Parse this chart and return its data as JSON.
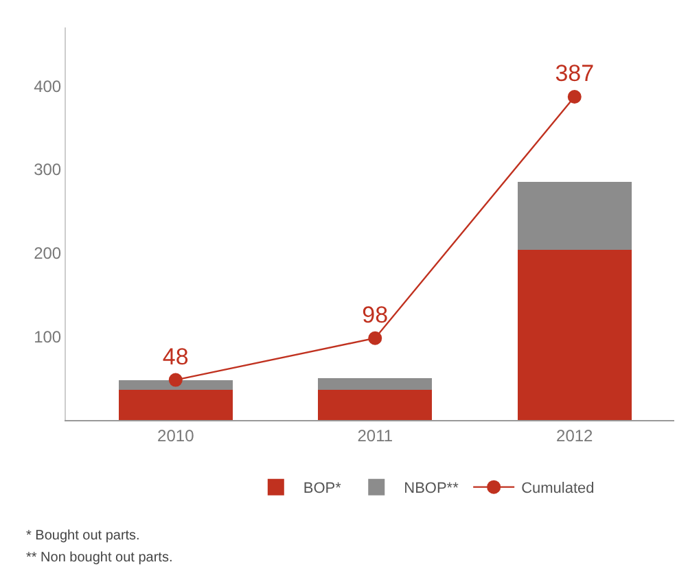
{
  "chart_data": {
    "type": "bar",
    "stacked": true,
    "categories": [
      "2010",
      "2011",
      "2012"
    ],
    "series": [
      {
        "name": "BOP*",
        "color": "#c0311f",
        "values": [
          36,
          36,
          204
        ]
      },
      {
        "name": "NBOP**",
        "color": "#8c8c8c",
        "values": [
          12,
          14,
          81
        ]
      },
      {
        "name": "Cumulated",
        "type": "line",
        "color": "#c0311f",
        "values": [
          48,
          98,
          387
        ],
        "marker": "circle",
        "data_labels": true
      }
    ],
    "ylim": [
      0,
      470
    ],
    "yticks": [
      100,
      200,
      300,
      400
    ],
    "grid": false,
    "legend": "bottom",
    "annotations": [
      "* Bought out parts.",
      "** Non bought out parts."
    ]
  }
}
